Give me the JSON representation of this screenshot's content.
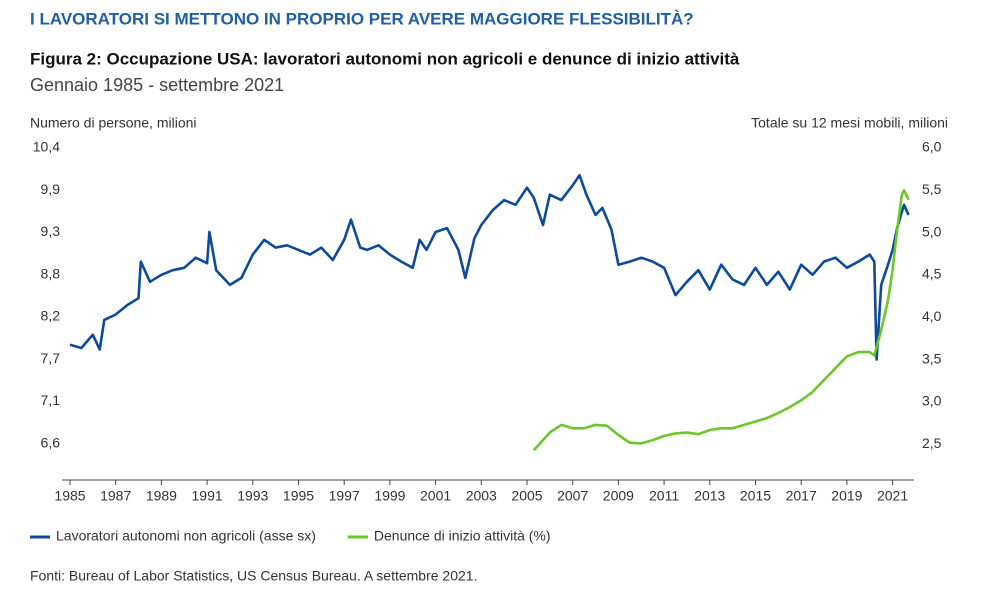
{
  "chart_data": {
    "type": "line",
    "kicker": "I LAVORATORI SI METTONO IN PROPRIO PER AVERE MAGGIORE FLESSIBILITÀ?",
    "title": "Figura 2: Occupazione USA: lavoratori autonomi non agricoli e denunce di inizio attività",
    "subtitle": "Gennaio 1985 - settembre 2021",
    "ylabel": "Numero di persone, milioni",
    "y2label": "Totale su 12 mesi mobili, milioni",
    "source": "Fonti: Bureau of Labor Statistics, US Census Bureau. A settembre 2021.",
    "xlim": [
      1985,
      2021.85
    ],
    "xticks": [
      1985,
      1987,
      1989,
      1991,
      1993,
      1995,
      1997,
      1999,
      2001,
      2003,
      2005,
      2007,
      2009,
      2011,
      2013,
      2015,
      2017,
      2019,
      2021
    ],
    "ylim": [
      6.21,
      10.4
    ],
    "yticks": [
      {
        "value": 10.4,
        "label": "10,4"
      },
      {
        "value": 9.857,
        "label": "9,9"
      },
      {
        "value": 9.314,
        "label": "9,3"
      },
      {
        "value": 8.771,
        "label": "8,8"
      },
      {
        "value": 8.229,
        "label": "8,2"
      },
      {
        "value": 7.686,
        "label": "7,7"
      },
      {
        "value": 7.143,
        "label": "7,1"
      },
      {
        "value": 6.6,
        "label": "6,6"
      }
    ],
    "y2lim": [
      2.15,
      6.0
    ],
    "y2ticks": [
      {
        "value": 6.0,
        "label": "6,0"
      },
      {
        "value": 5.5,
        "label": "5,5"
      },
      {
        "value": 5.0,
        "label": "5,0"
      },
      {
        "value": 4.5,
        "label": "4,5"
      },
      {
        "value": 4.0,
        "label": "4,0"
      },
      {
        "value": 3.5,
        "label": "3,5"
      },
      {
        "value": 3.0,
        "label": "3,0"
      },
      {
        "value": 2.5,
        "label": "2,5"
      }
    ],
    "series": [
      {
        "name": "Lavoratori autonomi non agricoli (asse sx)",
        "color": "#0d4a9c",
        "axis": "y",
        "x": [
          1985.0,
          1985.5,
          1986.0,
          1986.3,
          1986.5,
          1987.0,
          1987.5,
          1988.0,
          1988.1,
          1988.5,
          1989.0,
          1989.5,
          1990.0,
          1990.5,
          1991.0,
          1991.1,
          1991.4,
          1992.0,
          1992.5,
          1993.0,
          1993.5,
          1994.0,
          1994.5,
          1995.0,
          1995.5,
          1996.0,
          1996.5,
          1997.0,
          1997.3,
          1997.7,
          1998.0,
          1998.5,
          1999.0,
          1999.5,
          2000.0,
          2000.3,
          2000.6,
          2001.0,
          2001.5,
          2002.0,
          2002.3,
          2002.7,
          2003.0,
          2003.5,
          2004.0,
          2004.5,
          2005.0,
          2005.3,
          2005.7,
          2006.0,
          2006.5,
          2007.0,
          2007.3,
          2007.6,
          2008.0,
          2008.3,
          2008.7,
          2009.0,
          2009.5,
          2010.0,
          2010.5,
          2011.0,
          2011.5,
          2012.0,
          2012.5,
          2013.0,
          2013.5,
          2014.0,
          2014.5,
          2015.0,
          2015.5,
          2016.0,
          2016.5,
          2017.0,
          2017.5,
          2018.0,
          2018.5,
          2019.0,
          2019.5,
          2020.0,
          2020.2,
          2020.3,
          2020.5,
          2020.8,
          2021.0,
          2021.2,
          2021.5,
          2021.7
        ],
        "values": [
          7.87,
          7.83,
          8.0,
          7.81,
          8.19,
          8.26,
          8.38,
          8.47,
          8.94,
          8.68,
          8.77,
          8.83,
          8.86,
          8.99,
          8.92,
          9.32,
          8.83,
          8.64,
          8.73,
          9.03,
          9.22,
          9.12,
          9.15,
          9.09,
          9.03,
          9.12,
          8.96,
          9.22,
          9.48,
          9.12,
          9.09,
          9.15,
          9.03,
          8.94,
          8.86,
          9.22,
          9.09,
          9.32,
          9.37,
          9.09,
          8.73,
          9.24,
          9.41,
          9.6,
          9.73,
          9.67,
          9.89,
          9.76,
          9.41,
          9.8,
          9.73,
          9.92,
          10.05,
          9.8,
          9.54,
          9.63,
          9.35,
          8.9,
          8.94,
          8.99,
          8.94,
          8.86,
          8.51,
          8.68,
          8.83,
          8.58,
          8.9,
          8.71,
          8.64,
          8.86,
          8.64,
          8.81,
          8.58,
          8.9,
          8.77,
          8.94,
          8.99,
          8.86,
          8.94,
          9.03,
          8.94,
          7.68,
          8.64,
          8.9,
          9.09,
          9.37,
          9.67,
          9.54
        ]
      },
      {
        "name": "Denunce di inizio attività (%)",
        "color": "#6cc72b",
        "axis": "y2",
        "x": [
          2005.3,
          2005.7,
          2006.0,
          2006.5,
          2007.0,
          2007.5,
          2008.0,
          2008.5,
          2009.0,
          2009.5,
          2010.0,
          2010.5,
          2011.0,
          2011.5,
          2012.0,
          2012.5,
          2013.0,
          2013.5,
          2014.0,
          2014.5,
          2015.0,
          2015.5,
          2016.0,
          2016.5,
          2017.0,
          2017.5,
          2018.0,
          2018.5,
          2019.0,
          2019.5,
          2020.0,
          2020.2,
          2020.5,
          2020.8,
          2021.0,
          2021.2,
          2021.4,
          2021.5,
          2021.7
        ],
        "values": [
          2.43,
          2.55,
          2.64,
          2.73,
          2.69,
          2.69,
          2.73,
          2.72,
          2.61,
          2.52,
          2.51,
          2.55,
          2.6,
          2.63,
          2.64,
          2.62,
          2.67,
          2.69,
          2.69,
          2.73,
          2.77,
          2.81,
          2.87,
          2.94,
          3.02,
          3.12,
          3.26,
          3.4,
          3.54,
          3.59,
          3.59,
          3.55,
          3.85,
          4.2,
          4.56,
          5.03,
          5.44,
          5.5,
          5.39
        ]
      }
    ]
  }
}
